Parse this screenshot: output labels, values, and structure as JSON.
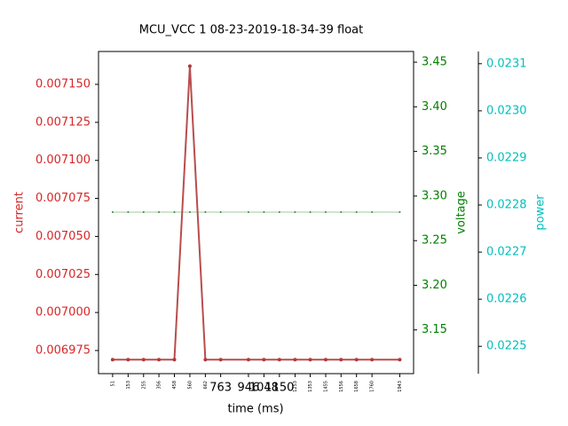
{
  "chart_data": {
    "type": "line",
    "title": "MCU_VCC   1   08-23-2019-18-34-39   float",
    "x_label": "time (ms)",
    "y_label": "current",
    "y2_label": "voltage",
    "y3_label": "power",
    "x": [
      51,
      153,
      255,
      356,
      458,
      560,
      662,
      763,
      946,
      1048,
      1150,
      1253,
      1353,
      1455,
      1556,
      1658,
      1760,
      1943
    ],
    "series": [
      {
        "name": "current",
        "color": "#b03a3a",
        "values": [
          0.006969,
          0.006969,
          0.006969,
          0.006969,
          0.006969,
          0.007162,
          0.006969,
          0.006969,
          0.006969,
          0.006969,
          0.006969,
          0.006969,
          0.006969,
          0.006969,
          0.006969,
          0.006969,
          0.006969,
          0.006969
        ]
      },
      {
        "name": "voltage",
        "color": "#2e8b2e",
        "axis": "y2",
        "values": [
          3.282,
          3.282,
          3.282,
          3.282,
          3.282,
          3.282,
          3.282,
          3.282,
          3.282,
          3.282,
          3.282,
          3.282,
          3.282,
          3.282,
          3.282,
          3.282,
          3.282,
          3.282
        ]
      }
    ],
    "xlim": [
      -42,
      2034
    ],
    "xticks": [
      51,
      153,
      255,
      356,
      458,
      560,
      662,
      1253,
      1353,
      1455,
      1556,
      1658,
      1760,
      1943
    ],
    "xticks_large": [
      763,
      946,
      1048,
      1150
    ],
    "ylim": [
      0.0069598,
      0.0071716
    ],
    "yticks": [
      0.006975,
      {
        "value": 0.007,
        "label": "0.007000"
      },
      0.007025,
      {
        "value": 0.00705,
        "label": "0.007050"
      },
      0.007075,
      {
        "value": 0.0071,
        "label": "0.007100"
      },
      0.007125,
      {
        "value": 0.00715,
        "label": "0.007150"
      }
    ],
    "y_color": "#d62728",
    "y2lim": [
      3.101,
      3.462
    ],
    "y2ticks": [
      3.15,
      {
        "value": 3.2,
        "label": "3.20"
      },
      3.25,
      {
        "value": 3.3,
        "label": "3.30"
      },
      3.35,
      {
        "value": 3.4,
        "label": "3.40"
      },
      3.45
    ],
    "y2_color": "#008000",
    "y3lim": [
      0.022442,
      0.023126
    ],
    "y3ticks": [
      0.0225,
      0.0226,
      0.0227,
      0.0228,
      0.0229,
      {
        "value": 0.023,
        "label": "0.0230"
      },
      0.0231
    ],
    "y3_color": "#00bfbf"
  }
}
